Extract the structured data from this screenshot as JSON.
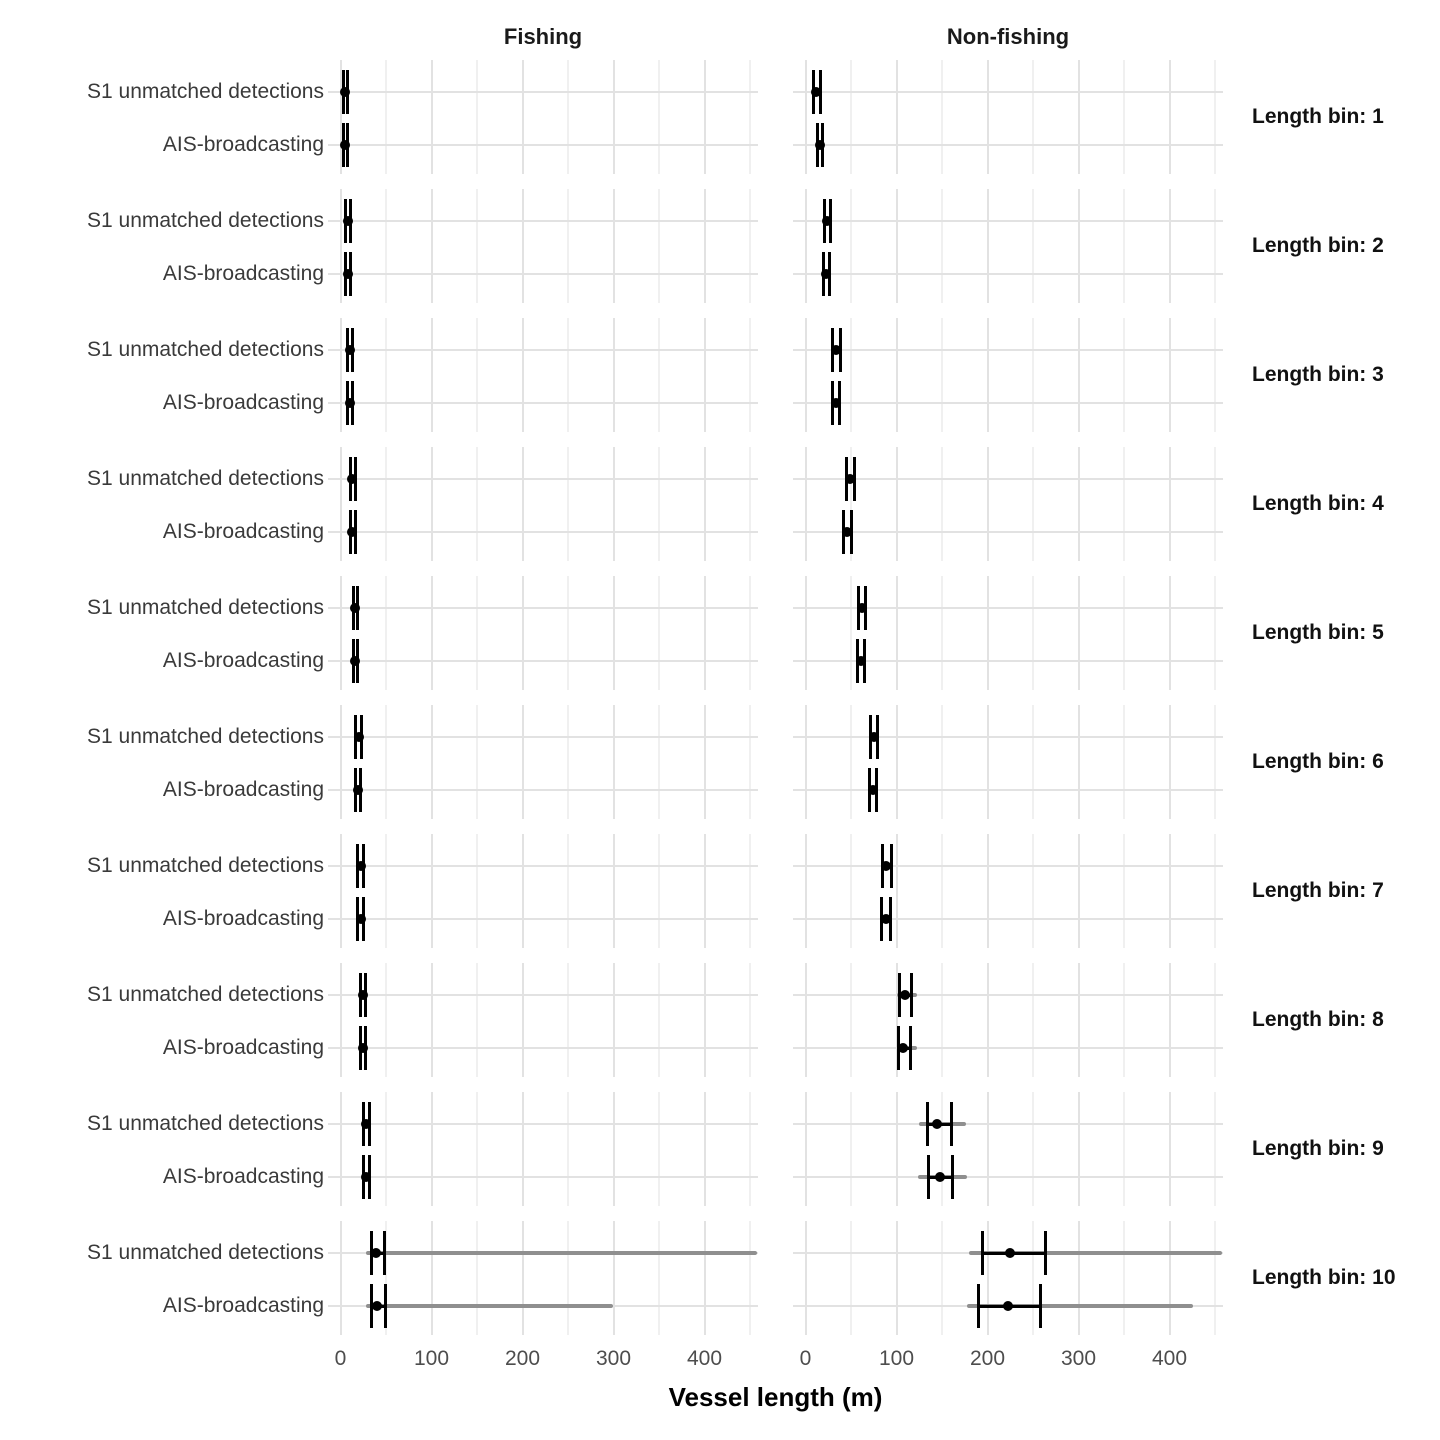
{
  "headers": {
    "fishing": "Fishing",
    "nonfishing": "Non-fishing"
  },
  "x_axis_title": "Vessel length (m)",
  "chart_data": {
    "type": "pointrange",
    "title": "",
    "xlabel": "Vessel length (m)",
    "x_ticks": [
      0,
      100,
      200,
      300,
      400
    ],
    "xlim": [
      -14,
      458
    ],
    "grid": "on",
    "legend": "none",
    "facet_columns": [
      "Fishing",
      "Non-fishing"
    ],
    "facet_rows": [
      "Length bin: 1",
      "Length bin: 2",
      "Length bin: 3",
      "Length bin: 4",
      "Length bin: 5",
      "Length bin: 6",
      "Length bin: 7",
      "Length bin: 8",
      "Length bin: 9",
      "Length bin: 10"
    ],
    "categories": [
      "S1 unmatched detections",
      "AIS-broadcasting"
    ],
    "units": "m",
    "point_color": "#000000",
    "range_color": "#000000",
    "full_range_color": "#8f8f8f",
    "bins": [
      {
        "strip": "Length bin: 1",
        "fishing": {
          "s1": {
            "est": 5,
            "lo": 3,
            "hi": 8
          },
          "ais": {
            "est": 5,
            "lo": 3,
            "hi": 8
          }
        },
        "nonfishing": {
          "s1": {
            "est": 12,
            "lo": 9,
            "hi": 16
          },
          "ais": {
            "est": 16,
            "lo": 13,
            "hi": 19
          }
        }
      },
      {
        "strip": "Length bin: 2",
        "fishing": {
          "s1": {
            "est": 8,
            "lo": 6,
            "hi": 11
          },
          "ais": {
            "est": 8,
            "lo": 6,
            "hi": 11
          }
        },
        "nonfishing": {
          "s1": {
            "est": 24,
            "lo": 21,
            "hi": 27
          },
          "ais": {
            "est": 23,
            "lo": 20,
            "hi": 26
          }
        }
      },
      {
        "strip": "Length bin: 3",
        "fishing": {
          "s1": {
            "est": 10,
            "lo": 8,
            "hi": 13
          },
          "ais": {
            "est": 10,
            "lo": 8,
            "hi": 13
          }
        },
        "nonfishing": {
          "s1": {
            "est": 34,
            "lo": 30,
            "hi": 38
          },
          "ais": {
            "est": 33,
            "lo": 30,
            "hi": 37
          }
        }
      },
      {
        "strip": "Length bin: 4",
        "fishing": {
          "s1": {
            "est": 13,
            "lo": 11,
            "hi": 16
          },
          "ais": {
            "est": 13,
            "lo": 11,
            "hi": 16
          }
        },
        "nonfishing": {
          "s1": {
            "est": 49,
            "lo": 45,
            "hi": 54
          },
          "ais": {
            "est": 46,
            "lo": 42,
            "hi": 51
          }
        }
      },
      {
        "strip": "Length bin: 5",
        "fishing": {
          "s1": {
            "est": 16,
            "lo": 14,
            "hi": 19
          },
          "ais": {
            "est": 16,
            "lo": 14,
            "hi": 19
          }
        },
        "nonfishing": {
          "s1": {
            "est": 62,
            "lo": 58,
            "hi": 66
          },
          "ais": {
            "est": 61,
            "lo": 57,
            "hi": 65
          }
        }
      },
      {
        "strip": "Length bin: 6",
        "fishing": {
          "s1": {
            "est": 20,
            "lo": 17,
            "hi": 23
          },
          "ais": {
            "est": 19,
            "lo": 17,
            "hi": 22
          }
        },
        "nonfishing": {
          "s1": {
            "est": 75,
            "lo": 71,
            "hi": 79
          },
          "ais": {
            "est": 74,
            "lo": 70,
            "hi": 78
          }
        }
      },
      {
        "strip": "Length bin: 7",
        "fishing": {
          "s1": {
            "est": 22,
            "lo": 19,
            "hi": 25
          },
          "ais": {
            "est": 22,
            "lo": 19,
            "hi": 25
          }
        },
        "nonfishing": {
          "s1": {
            "est": 89,
            "lo": 85,
            "hi": 94
          },
          "ais": {
            "est": 88,
            "lo": 84,
            "hi": 93
          }
        }
      },
      {
        "strip": "Length bin: 8",
        "fishing": {
          "s1": {
            "est": 25,
            "lo": 22,
            "hi": 28
          },
          "ais": {
            "est": 25,
            "lo": 22,
            "hi": 28
          }
        },
        "nonfishing": {
          "s1": {
            "est": 109,
            "lo": 103,
            "hi": 116,
            "full_lo": 100,
            "full_hi": 122
          },
          "ais": {
            "est": 107,
            "lo": 102,
            "hi": 115,
            "full_lo": 100,
            "full_hi": 122
          }
        }
      },
      {
        "strip": "Length bin: 9",
        "fishing": {
          "s1": {
            "est": 28,
            "lo": 25,
            "hi": 32
          },
          "ais": {
            "est": 28,
            "lo": 25,
            "hi": 32
          }
        },
        "nonfishing": {
          "s1": {
            "est": 144,
            "lo": 134,
            "hi": 160,
            "full_lo": 125,
            "full_hi": 176
          },
          "ais": {
            "est": 148,
            "lo": 135,
            "hi": 161,
            "full_lo": 124,
            "full_hi": 177
          }
        }
      },
      {
        "strip": "Length bin: 10",
        "fishing": {
          "s1": {
            "est": 39,
            "lo": 34,
            "hi": 48,
            "full_lo": 28,
            "full_hi": 458
          },
          "ais": {
            "est": 40,
            "lo": 34,
            "hi": 49,
            "full_lo": 28,
            "full_hi": 300
          }
        },
        "nonfishing": {
          "s1": {
            "est": 225,
            "lo": 194,
            "hi": 264,
            "full_lo": 180,
            "full_hi": 458
          },
          "ais": {
            "est": 222,
            "lo": 190,
            "hi": 258,
            "full_lo": 177,
            "full_hi": 426
          }
        }
      }
    ]
  }
}
